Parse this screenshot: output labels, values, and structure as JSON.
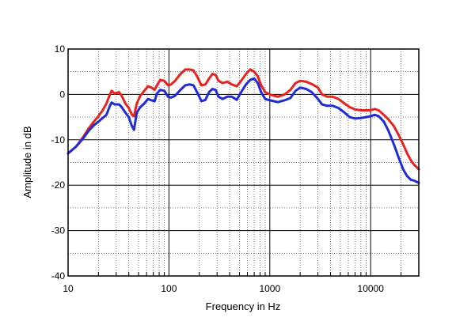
{
  "chart_data": {
    "type": "line",
    "title": "",
    "xlabel": "Frequency in Hz",
    "ylabel": "Amplitude in dB",
    "xscale": "log",
    "xlim": [
      10,
      30000
    ],
    "ylim": [
      -40,
      10
    ],
    "x_ticks": [
      10,
      100,
      1000,
      10000
    ],
    "x_tick_labels": [
      "10",
      "100",
      "1000",
      "10000"
    ],
    "y_ticks": [
      10,
      0,
      -10,
      -20,
      -30,
      -40
    ],
    "y_tick_labels": [
      "10",
      "0",
      "-10",
      "-20",
      "-30",
      "-40"
    ],
    "grid": "dotted minor, solid major",
    "series": [
      {
        "name": "red trace",
        "color": "#e8231f",
        "points": [
          [
            10,
            -13
          ],
          [
            12,
            -11.5
          ],
          [
            14,
            -9.5
          ],
          [
            16,
            -7.5
          ],
          [
            18,
            -6
          ],
          [
            20,
            -4.8
          ],
          [
            22,
            -3.5
          ],
          [
            24,
            -2
          ],
          [
            26,
            0
          ],
          [
            27,
            0.8
          ],
          [
            29,
            0.2
          ],
          [
            32,
            0.5
          ],
          [
            34,
            -0.3
          ],
          [
            37,
            -2
          ],
          [
            40,
            -3
          ],
          [
            43,
            -4.5
          ],
          [
            45,
            -4.8
          ],
          [
            48,
            -2
          ],
          [
            52,
            -0.3
          ],
          [
            57,
            0.8
          ],
          [
            62,
            1.8
          ],
          [
            67,
            1.5
          ],
          [
            72,
            1
          ],
          [
            76,
            2
          ],
          [
            82,
            3.2
          ],
          [
            90,
            3
          ],
          [
            98,
            2
          ],
          [
            105,
            2.2
          ],
          [
            115,
            3
          ],
          [
            130,
            4.5
          ],
          [
            145,
            5.5
          ],
          [
            160,
            5.5
          ],
          [
            175,
            5.3
          ],
          [
            190,
            4
          ],
          [
            210,
            2
          ],
          [
            230,
            2.2
          ],
          [
            250,
            3.5
          ],
          [
            270,
            4.5
          ],
          [
            290,
            4.3
          ],
          [
            310,
            3
          ],
          [
            340,
            2.5
          ],
          [
            380,
            2.8
          ],
          [
            420,
            2.2
          ],
          [
            470,
            1.8
          ],
          [
            520,
            3
          ],
          [
            580,
            4.5
          ],
          [
            640,
            5.5
          ],
          [
            700,
            5
          ],
          [
            760,
            4
          ],
          [
            820,
            2
          ],
          [
            900,
            0.5
          ],
          [
            1000,
            0
          ],
          [
            1100,
            -0.3
          ],
          [
            1200,
            -0.5
          ],
          [
            1400,
            0
          ],
          [
            1600,
            1
          ],
          [
            1800,
            2.5
          ],
          [
            2000,
            3
          ],
          [
            2300,
            2.8
          ],
          [
            2600,
            2.3
          ],
          [
            3000,
            1.5
          ],
          [
            3300,
            0
          ],
          [
            3700,
            -0.5
          ],
          [
            4200,
            -0.5
          ],
          [
            4800,
            -1
          ],
          [
            5500,
            -2
          ],
          [
            6200,
            -2.8
          ],
          [
            7000,
            -3.3
          ],
          [
            8000,
            -3.5
          ],
          [
            9000,
            -3.5
          ],
          [
            10000,
            -3.5
          ],
          [
            11000,
            -3.2
          ],
          [
            12000,
            -3.5
          ],
          [
            13500,
            -4.5
          ],
          [
            15000,
            -5.5
          ],
          [
            17000,
            -7
          ],
          [
            19000,
            -9
          ],
          [
            21000,
            -11
          ],
          [
            23000,
            -13
          ],
          [
            25000,
            -14.5
          ],
          [
            27000,
            -15.5
          ],
          [
            30000,
            -16.5
          ]
        ]
      },
      {
        "name": "blue trace",
        "color": "#1f2bd6",
        "points": [
          [
            10,
            -13
          ],
          [
            12,
            -11.5
          ],
          [
            14,
            -9.8
          ],
          [
            16,
            -8
          ],
          [
            18,
            -6.8
          ],
          [
            20,
            -6
          ],
          [
            22,
            -5.2
          ],
          [
            24,
            -4.5
          ],
          [
            26,
            -2.5
          ],
          [
            27,
            -1.8
          ],
          [
            29,
            -2.2
          ],
          [
            32,
            -2.2
          ],
          [
            34,
            -2.8
          ],
          [
            37,
            -4
          ],
          [
            40,
            -5
          ],
          [
            43,
            -7
          ],
          [
            45,
            -7.8
          ],
          [
            48,
            -4
          ],
          [
            52,
            -2.8
          ],
          [
            57,
            -2
          ],
          [
            62,
            -1
          ],
          [
            67,
            -1.3
          ],
          [
            72,
            -1.5
          ],
          [
            76,
            0.2
          ],
          [
            82,
            1
          ],
          [
            90,
            0.8
          ],
          [
            98,
            -0.5
          ],
          [
            105,
            -0.7
          ],
          [
            115,
            -0.3
          ],
          [
            130,
            1
          ],
          [
            145,
            2
          ],
          [
            160,
            2.2
          ],
          [
            175,
            2
          ],
          [
            190,
            0.5
          ],
          [
            210,
            -1.5
          ],
          [
            230,
            -1.2
          ],
          [
            250,
            0.5
          ],
          [
            270,
            1.2
          ],
          [
            290,
            1
          ],
          [
            310,
            -0.5
          ],
          [
            340,
            -1
          ],
          [
            380,
            -0.5
          ],
          [
            420,
            -0.5
          ],
          [
            470,
            -1.2
          ],
          [
            520,
            0.5
          ],
          [
            580,
            2.2
          ],
          [
            640,
            3.2
          ],
          [
            700,
            3.5
          ],
          [
            760,
            2.5
          ],
          [
            820,
            0.5
          ],
          [
            900,
            -1
          ],
          [
            1000,
            -1.3
          ],
          [
            1100,
            -1.5
          ],
          [
            1200,
            -1.7
          ],
          [
            1400,
            -1.3
          ],
          [
            1600,
            -0.8
          ],
          [
            1800,
            0.8
          ],
          [
            2000,
            1.5
          ],
          [
            2300,
            1.2
          ],
          [
            2600,
            0.5
          ],
          [
            3000,
            -1
          ],
          [
            3300,
            -2.2
          ],
          [
            3700,
            -2.5
          ],
          [
            4200,
            -2.5
          ],
          [
            4800,
            -3
          ],
          [
            5500,
            -4
          ],
          [
            6200,
            -5
          ],
          [
            7000,
            -5.3
          ],
          [
            8000,
            -5.2
          ],
          [
            9000,
            -5
          ],
          [
            10000,
            -4.8
          ],
          [
            11000,
            -4.5
          ],
          [
            12000,
            -4.8
          ],
          [
            13500,
            -6
          ],
          [
            15000,
            -8
          ],
          [
            17000,
            -11
          ],
          [
            19000,
            -14
          ],
          [
            21000,
            -16.5
          ],
          [
            23000,
            -18
          ],
          [
            25000,
            -18.8
          ],
          [
            27000,
            -19
          ],
          [
            30000,
            -19.5
          ]
        ]
      }
    ]
  }
}
